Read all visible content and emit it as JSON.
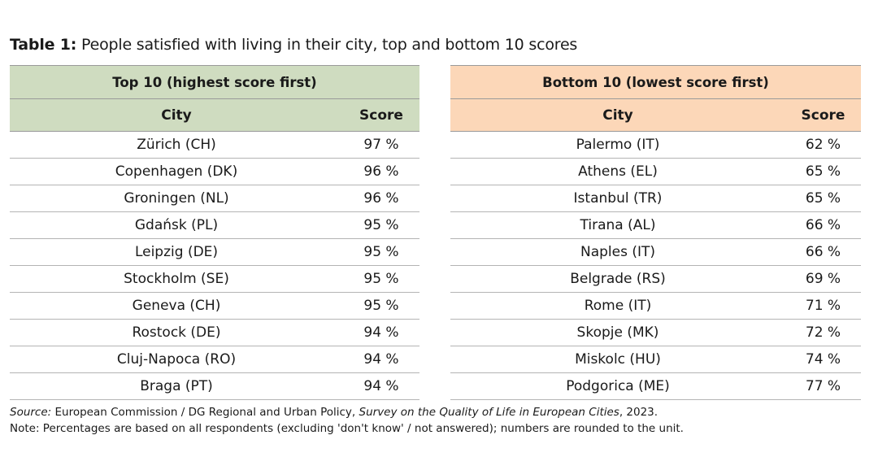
{
  "title": {
    "label": "Table 1:",
    "text": "People satisfied with living in their city, top and bottom 10 scores"
  },
  "colors": {
    "top_header_bg": "#cfdcc0",
    "bottom_header_bg": "#fcd7b8"
  },
  "top_table": {
    "header": "Top 10 (highest score first)",
    "columns": {
      "city": "City",
      "score": "Score"
    },
    "rows": [
      {
        "city": "Zürich (CH)",
        "score": "97 %"
      },
      {
        "city": "Copenhagen (DK)",
        "score": "96 %"
      },
      {
        "city": "Groningen (NL)",
        "score": "96 %"
      },
      {
        "city": "Gdańsk (PL)",
        "score": "95 %"
      },
      {
        "city": "Leipzig (DE)",
        "score": "95 %"
      },
      {
        "city": "Stockholm (SE)",
        "score": "95 %"
      },
      {
        "city": "Geneva (CH)",
        "score": "95 %"
      },
      {
        "city": "Rostock (DE)",
        "score": "94 %"
      },
      {
        "city": "Cluj-Napoca (RO)",
        "score": "94 %"
      },
      {
        "city": "Braga (PT)",
        "score": "94 %"
      }
    ]
  },
  "bottom_table": {
    "header": "Bottom 10 (lowest score first)",
    "columns": {
      "city": "City",
      "score": "Score"
    },
    "rows": [
      {
        "city": "Palermo (IT)",
        "score": "62 %"
      },
      {
        "city": "Athens (EL)",
        "score": "65 %"
      },
      {
        "city": "Istanbul (TR)",
        "score": "65 %"
      },
      {
        "city": "Tirana (AL)",
        "score": "66 %"
      },
      {
        "city": "Naples (IT)",
        "score": "66 %"
      },
      {
        "city": "Belgrade (RS)",
        "score": "69 %"
      },
      {
        "city": "Rome (IT)",
        "score": "71 %"
      },
      {
        "city": "Skopje (MK)",
        "score": "72 %"
      },
      {
        "city": "Miskolc (HU)",
        "score": "74 %"
      },
      {
        "city": "Podgorica (ME)",
        "score": "77 %"
      }
    ]
  },
  "source": {
    "label": "Source:",
    "text1": " European Commission / DG Regional and Urban Policy, ",
    "survey": "Survey on the Quality of Life in European Cities",
    "text2": ", 2023."
  },
  "note": "Note: Percentages are based on all respondents (excluding 'don't know' / not answered); numbers are rounded to the unit."
}
